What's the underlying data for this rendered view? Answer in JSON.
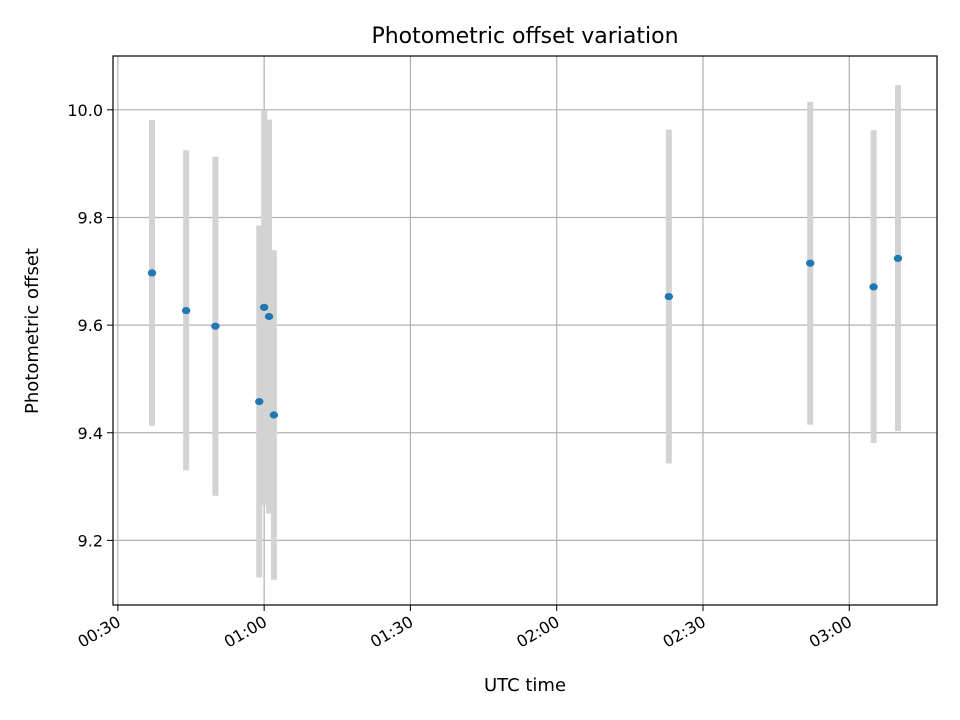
{
  "chart_data": {
    "type": "scatter",
    "title": "Photometric offset variation",
    "xlabel": "UTC time",
    "ylabel": "Photometric offset",
    "x_axis_type": "time",
    "xlim": [
      "00:29",
      "03:18"
    ],
    "ylim": [
      9.08,
      10.1
    ],
    "x_ticks": [
      "00:30",
      "01:00",
      "01:30",
      "02:00",
      "02:30",
      "03:00"
    ],
    "y_ticks": [
      9.2,
      9.4,
      9.6,
      9.8,
      10.0
    ],
    "grid": true,
    "marker_color": "#1f77b4",
    "errorbar_color": "#d3d3d3",
    "points": [
      {
        "x": "00:37",
        "y": 9.697,
        "ymin": 9.413,
        "ymax": 9.981
      },
      {
        "x": "00:44",
        "y": 9.627,
        "ymin": 9.33,
        "ymax": 9.925
      },
      {
        "x": "00:50",
        "y": 9.598,
        "ymin": 9.283,
        "ymax": 9.913
      },
      {
        "x": "00:59",
        "y": 9.458,
        "ymin": 9.131,
        "ymax": 9.785
      },
      {
        "x": "01:00",
        "y": 9.633,
        "ymin": 9.265,
        "ymax": 10.0
      },
      {
        "x": "01:01",
        "y": 9.616,
        "ymin": 9.25,
        "ymax": 9.982
      },
      {
        "x": "01:02",
        "y": 9.433,
        "ymin": 9.127,
        "ymax": 9.739
      },
      {
        "x": "02:23",
        "y": 9.653,
        "ymin": 9.343,
        "ymax": 9.963
      },
      {
        "x": "02:52",
        "y": 9.715,
        "ymin": 9.415,
        "ymax": 10.015
      },
      {
        "x": "03:05",
        "y": 9.671,
        "ymin": 9.381,
        "ymax": 9.962
      },
      {
        "x": "03:10",
        "y": 9.724,
        "ymin": 9.403,
        "ymax": 10.046
      }
    ]
  }
}
